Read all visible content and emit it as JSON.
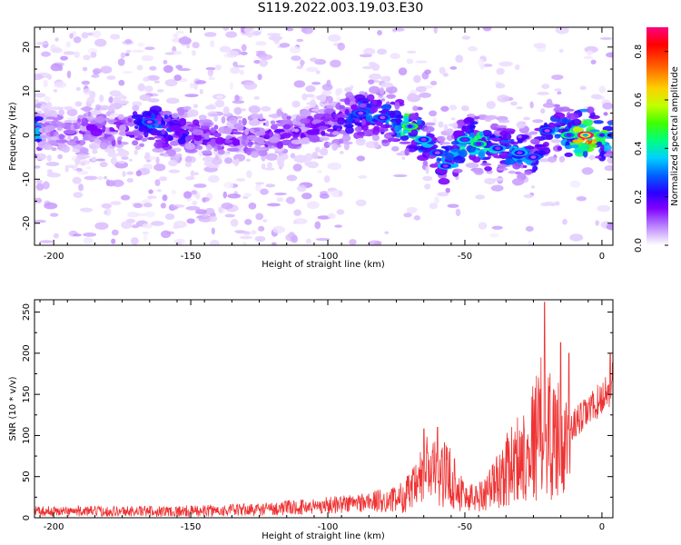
{
  "title": "S119.2022.003.19.03.E30",
  "chart_data": [
    {
      "type": "heatmap",
      "xlabel": "Height of straight line (km)",
      "ylabel": "Frequency (Hz)",
      "xlim": [
        -207,
        4
      ],
      "ylim": [
        -25,
        24.5
      ],
      "x_ticks": [
        -200,
        -150,
        -100,
        -50,
        0
      ],
      "y_ticks": [
        -20,
        -10,
        0,
        10,
        20
      ],
      "colorbar": {
        "label": "Normalized spectral amplitude",
        "range": [
          0,
          0.9
        ],
        "ticks": [
          0.0,
          0.2,
          0.4,
          0.6,
          0.8
        ],
        "colormap": [
          "#ffffff",
          "#e0c8ff",
          "#b070ff",
          "#8000ff",
          "#2a00ff",
          "#0060ff",
          "#00d0ff",
          "#00ff80",
          "#40ff00",
          "#c0ff00",
          "#ffd000",
          "#ff6000",
          "#ff0000",
          "#ff0080"
        ]
      },
      "ridge": [
        {
          "x": -205,
          "y": 1,
          "v": 0.15
        },
        {
          "x": -190,
          "y": 1,
          "v": 0.18
        },
        {
          "x": -175,
          "y": 1,
          "v": 0.2
        },
        {
          "x": -165,
          "y": 3,
          "v": 0.35
        },
        {
          "x": -150,
          "y": 0,
          "v": 0.25
        },
        {
          "x": -140,
          "y": -1,
          "v": 0.2
        },
        {
          "x": -125,
          "y": 0,
          "v": 0.22
        },
        {
          "x": -110,
          "y": 1,
          "v": 0.2
        },
        {
          "x": -95,
          "y": 3,
          "v": 0.25
        },
        {
          "x": -88,
          "y": 5,
          "v": 0.35
        },
        {
          "x": -80,
          "y": 4,
          "v": 0.35
        },
        {
          "x": -70,
          "y": 2,
          "v": 0.55
        },
        {
          "x": -65,
          "y": -1,
          "v": 0.4
        },
        {
          "x": -60,
          "y": -4,
          "v": 0.35
        },
        {
          "x": -57,
          "y": -7,
          "v": 0.4
        },
        {
          "x": -50,
          "y": -1,
          "v": 0.45
        },
        {
          "x": -45,
          "y": -2,
          "v": 0.5
        },
        {
          "x": -38,
          "y": -3,
          "v": 0.4
        },
        {
          "x": -30,
          "y": -4,
          "v": 0.4
        },
        {
          "x": -25,
          "y": -5,
          "v": 0.35
        },
        {
          "x": -20,
          "y": 1,
          "v": 0.35
        },
        {
          "x": -12,
          "y": 0,
          "v": 0.5
        },
        {
          "x": -6,
          "y": 0,
          "v": 0.9
        },
        {
          "x": 0,
          "y": 0,
          "v": 0.55
        },
        {
          "x": 4,
          "y": 0,
          "v": 0.4
        }
      ]
    },
    {
      "type": "line",
      "xlabel": "Height of straight line (km)",
      "ylabel": "SNR (10 * v/v)",
      "xlim": [
        -207,
        4
      ],
      "ylim": [
        0,
        265
      ],
      "x_ticks": [
        -200,
        -150,
        -100,
        -50,
        0
      ],
      "y_ticks": [
        0,
        50,
        100,
        150,
        200,
        250
      ],
      "color": "#ee3333",
      "envelope": [
        {
          "x": -207,
          "base": 8,
          "amp": 6
        },
        {
          "x": -150,
          "base": 8,
          "amp": 7
        },
        {
          "x": -125,
          "base": 10,
          "amp": 8
        },
        {
          "x": -105,
          "base": 14,
          "amp": 10
        },
        {
          "x": -90,
          "base": 18,
          "amp": 12
        },
        {
          "x": -75,
          "base": 22,
          "amp": 16
        },
        {
          "x": -68,
          "base": 35,
          "amp": 30
        },
        {
          "x": -64,
          "base": 60,
          "amp": 45
        },
        {
          "x": -60,
          "base": 55,
          "amp": 40
        },
        {
          "x": -55,
          "base": 50,
          "amp": 40
        },
        {
          "x": -50,
          "base": 25,
          "amp": 20
        },
        {
          "x": -45,
          "base": 25,
          "amp": 18
        },
        {
          "x": -38,
          "base": 45,
          "amp": 35
        },
        {
          "x": -33,
          "base": 65,
          "amp": 50
        },
        {
          "x": -28,
          "base": 80,
          "amp": 60
        },
        {
          "x": -22,
          "base": 110,
          "amp": 90
        },
        {
          "x": -17,
          "base": 100,
          "amp": 80
        },
        {
          "x": -12,
          "base": 80,
          "amp": 50
        },
        {
          "x": -11,
          "base": 110,
          "amp": 20
        },
        {
          "x": -5,
          "base": 130,
          "amp": 20
        },
        {
          "x": 0,
          "base": 145,
          "amp": 22
        },
        {
          "x": 4,
          "base": 165,
          "amp": 25
        }
      ],
      "peaks": [
        {
          "x": -21,
          "y": 262
        },
        {
          "x": -15,
          "y": 213
        },
        {
          "x": -12,
          "y": 200
        },
        {
          "x": 3,
          "y": 200
        },
        {
          "x": -60,
          "y": 110
        },
        {
          "x": -65,
          "y": 108
        }
      ]
    }
  ]
}
